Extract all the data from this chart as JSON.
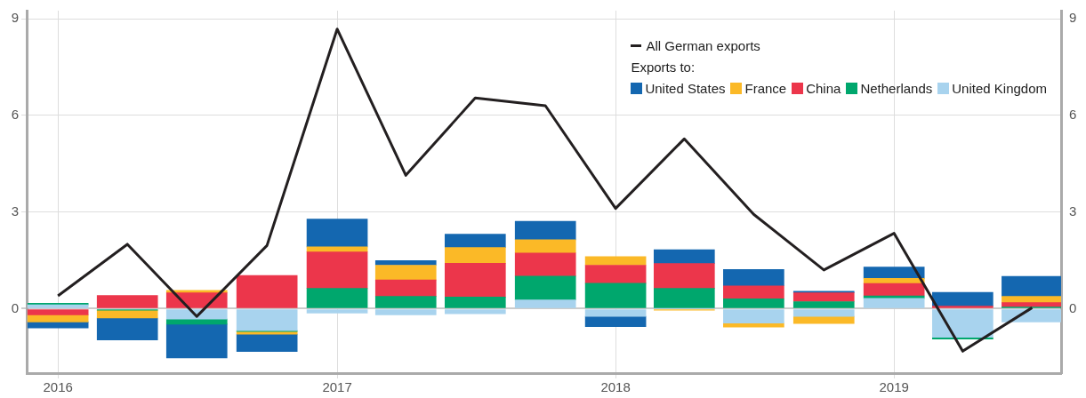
{
  "chart_data": {
    "type": "bar",
    "stacked": true,
    "legend": "top right",
    "legend_title": "Exports to:",
    "grid": true,
    "x": [
      "2016-01-01",
      "2016-04-01",
      "2016-07-01",
      "2016-10-01",
      "2017-01-01",
      "2017-04-01",
      "2017-07-01",
      "2017-10-01",
      "2018-01-01",
      "2018-04-01",
      "2018-07-01",
      "2018-10-01",
      "2019-01-01",
      "2019-04-01",
      "2019-07-01"
    ],
    "xlim": [
      "2015-11-21",
      "2019-08-08"
    ],
    "xticks": [
      {
        "value": "2016-01-01",
        "label": "2016"
      },
      {
        "value": "2017-01-01",
        "label": "2017"
      },
      {
        "value": "2018-01-01",
        "label": "2018"
      },
      {
        "value": "2019-01-01",
        "label": "2019"
      }
    ],
    "ylim": [
      -2,
      9.25
    ],
    "yticks": [
      0,
      3,
      6,
      9
    ],
    "y2lim": [
      -2,
      9.25
    ],
    "y2ticks": [
      0,
      3,
      6,
      9
    ],
    "series": [
      {
        "name": "United Kingdom",
        "color": "#a8d3ee",
        "values": [
          0.12,
          null,
          -0.32,
          -0.68,
          -0.14,
          -0.19,
          -0.16,
          0.27,
          -0.24,
          0,
          -0.45,
          -0.24,
          0.32,
          -0.89,
          -0.41
        ]
      },
      {
        "name": "Netherlands",
        "color": "#00a76d",
        "values": [
          0.05,
          -0.05,
          -0.16,
          -0.03,
          0.63,
          0.38,
          0.36,
          0.74,
          0.79,
          0.63,
          0.31,
          0.22,
          0.08,
          -0.05,
          0.05
        ]
      },
      {
        "name": "China",
        "color": "#ec364b",
        "values": [
          -0.19,
          0.41,
          0.49,
          1.03,
          1.13,
          0.51,
          1.05,
          0.72,
          0.56,
          0.77,
          0.4,
          0.27,
          0.38,
          0.08,
          0.14
        ]
      },
      {
        "name": "France",
        "color": "#fbb927",
        "values": [
          -0.22,
          -0.24,
          0.08,
          -0.08,
          0.16,
          0.46,
          0.49,
          0.41,
          0.27,
          -0.05,
          -0.12,
          -0.22,
          0.16,
          0,
          0.19
        ]
      },
      {
        "name": "United States",
        "color": "#1467b0",
        "values": [
          -0.19,
          -0.68,
          -1.05,
          -0.54,
          0.86,
          0.14,
          0.41,
          0.57,
          -0.32,
          0.43,
          0.51,
          0.05,
          0.35,
          0.43,
          0.62
        ]
      },
      {
        "name": "All German exports",
        "type": "line",
        "color": "#231f20",
        "values": [
          0.4,
          2.0,
          -0.24,
          1.96,
          8.68,
          4.14,
          6.54,
          6.3,
          3.11,
          5.27,
          2.93,
          1.2,
          2.34,
          -1.32,
          0.03
        ]
      }
    ]
  }
}
